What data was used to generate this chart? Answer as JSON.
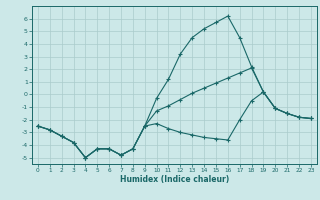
{
  "xlabel": "Humidex (Indice chaleur)",
  "bg_color": "#cce8e8",
  "grid_color": "#aacccc",
  "line_color": "#1a6868",
  "xlim": [
    -0.5,
    23.5
  ],
  "ylim": [
    -5.5,
    7.0
  ],
  "xticks": [
    0,
    1,
    2,
    3,
    4,
    5,
    6,
    7,
    8,
    9,
    10,
    11,
    12,
    13,
    14,
    15,
    16,
    17,
    18,
    19,
    20,
    21,
    22,
    23
  ],
  "yticks": [
    -5,
    -4,
    -3,
    -2,
    -1,
    0,
    1,
    2,
    3,
    4,
    5,
    6
  ],
  "line1_x": [
    0,
    1,
    2,
    3,
    4,
    5,
    6,
    7,
    8,
    9,
    10,
    11,
    12,
    13,
    14,
    15,
    16,
    17,
    18,
    19,
    20,
    21,
    22,
    23
  ],
  "line1_y": [
    -2.5,
    -2.8,
    -3.3,
    -3.8,
    -5.0,
    -4.3,
    -4.3,
    -4.8,
    -4.3,
    -2.5,
    -0.3,
    1.2,
    3.2,
    4.5,
    5.2,
    5.7,
    6.2,
    4.5,
    2.2,
    0.2,
    -1.1,
    -1.5,
    -1.8,
    -1.9
  ],
  "line2_x": [
    0,
    1,
    2,
    3,
    4,
    5,
    6,
    7,
    8,
    9,
    10,
    11,
    12,
    13,
    14,
    15,
    16,
    17,
    18,
    19,
    20,
    21,
    22,
    23
  ],
  "line2_y": [
    -2.5,
    -2.8,
    -3.3,
    -3.8,
    -5.0,
    -4.3,
    -4.3,
    -4.8,
    -4.3,
    -2.5,
    -1.3,
    -0.9,
    -0.4,
    0.1,
    0.5,
    0.9,
    1.3,
    1.7,
    2.1,
    0.2,
    -1.1,
    -1.5,
    -1.8,
    -1.9
  ],
  "line3_x": [
    0,
    1,
    2,
    3,
    4,
    5,
    6,
    7,
    8,
    9,
    10,
    11,
    12,
    13,
    14,
    15,
    16,
    17,
    18,
    19,
    20,
    21,
    22,
    23
  ],
  "line3_y": [
    -2.5,
    -2.8,
    -3.3,
    -3.8,
    -5.0,
    -4.3,
    -4.3,
    -4.8,
    -4.3,
    -2.5,
    -2.3,
    -2.7,
    -3.0,
    -3.2,
    -3.4,
    -3.5,
    -3.6,
    -2.0,
    -0.5,
    0.2,
    -1.1,
    -1.5,
    -1.8,
    -1.9
  ]
}
